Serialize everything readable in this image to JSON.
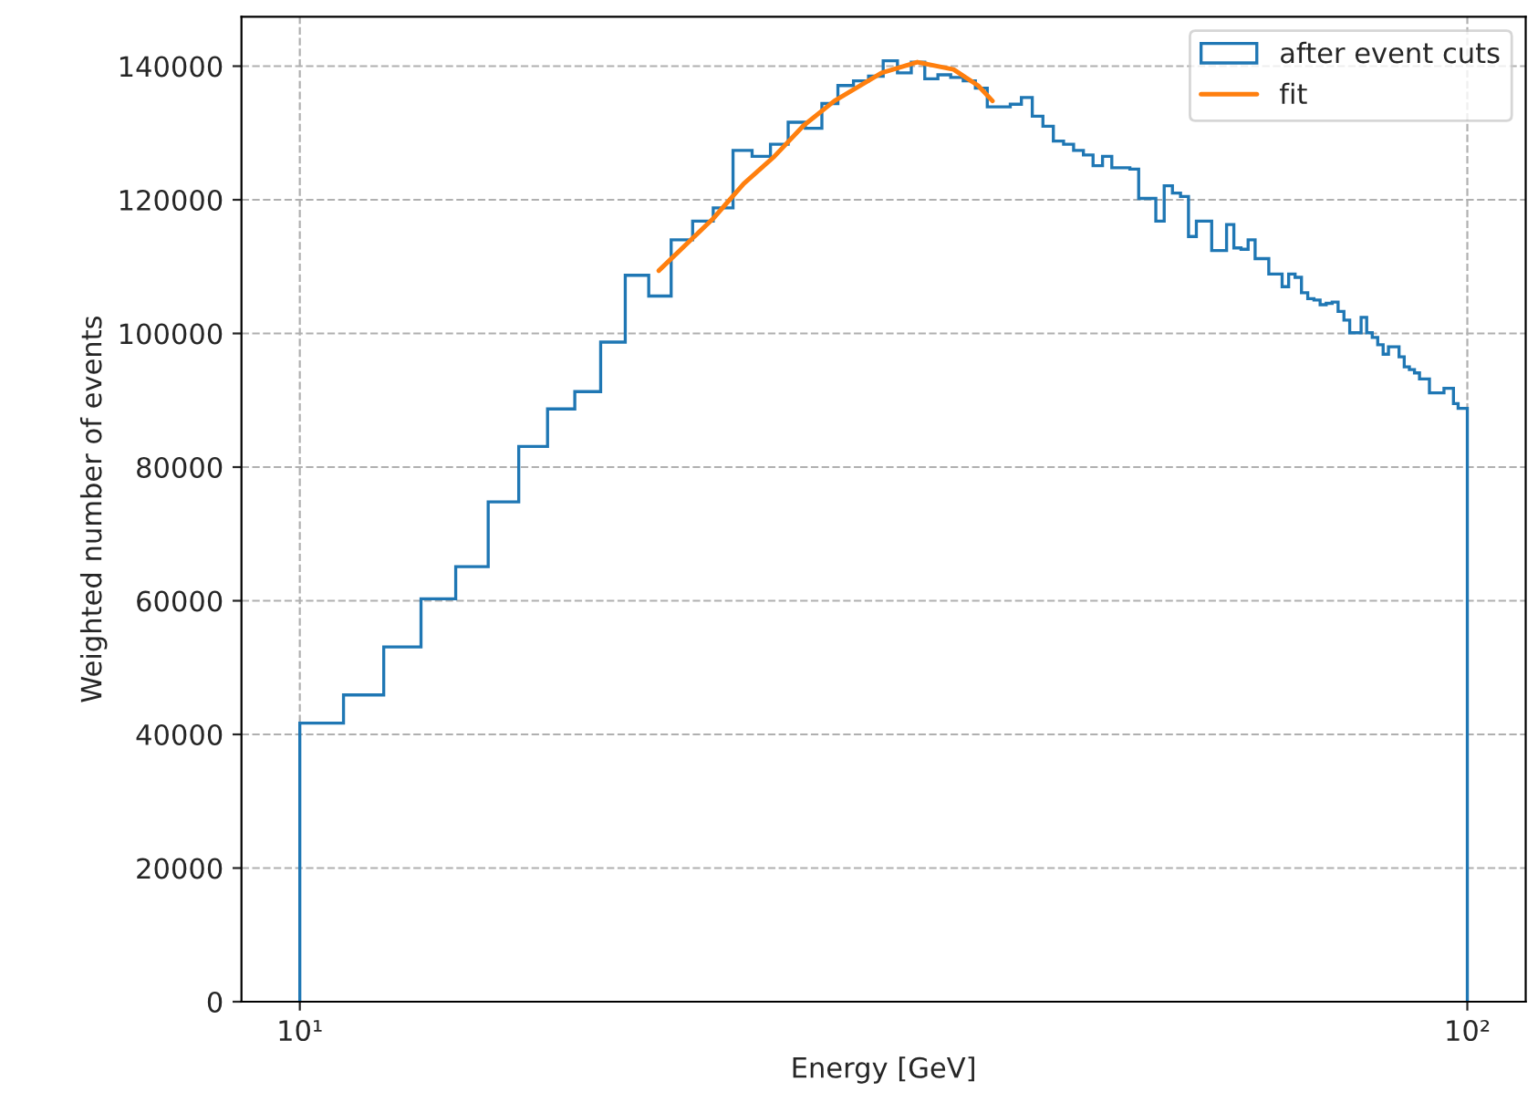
{
  "chart_data": {
    "type": "histogram",
    "xlabel": "Energy [GeV]",
    "ylabel": "Weighted number of events",
    "bins": [
      10,
      10.9,
      11.8,
      12.7,
      13.6,
      14.5,
      15.4,
      16.3,
      17.2,
      18.1,
      19,
      19.9,
      20.8,
      21.7,
      22.6,
      23.5,
      24.4,
      25.3,
      26.2,
      27.1,
      28,
      28.9,
      29.8,
      30.7,
      31.6,
      32.5,
      33.4,
      34.3,
      35.2,
      36.1,
      37,
      37.9,
      38.8,
      39.7,
      40.6,
      41.5,
      42.4,
      43.3,
      44.2,
      45.1,
      46,
      46.9,
      47.8,
      48.7,
      49.6,
      50.5,
      51.4,
      52.3,
      53.2,
      54.1,
      55,
      55.9,
      56.8,
      57.7,
      58.6,
      59.5,
      60.4,
      61.3,
      62.2,
      63.1,
      64,
      64.9,
      65.8,
      66.7,
      67.6,
      68.5,
      69.4,
      70.3,
      71.2,
      72.1,
      73,
      73.9,
      74.8,
      75.7,
      76.6,
      77.5,
      78.4,
      79.3,
      80.2,
      81.1,
      82,
      82.9,
      83.8,
      84.7,
      85.6,
      86.5,
      87.4,
      88.3,
      89.2,
      90.1,
      91,
      91.9,
      92.8,
      93.7,
      94.6,
      95.5,
      96.4,
      97.3,
      98.2,
      99.1,
      100
    ],
    "series": [
      {
        "name": "after event cuts",
        "color": "#1f77b4",
        "values": [
          41700,
          45900,
          53100,
          60300,
          65100,
          74800,
          83100,
          88700,
          91300,
          98700,
          108700,
          105600,
          114000,
          116800,
          118800,
          127400,
          126500,
          128300,
          131600,
          130700,
          134400,
          137100,
          137800,
          138500,
          140800,
          139000,
          140600,
          138100,
          138700,
          138300,
          137800,
          136700,
          133900,
          133900,
          134300,
          135300,
          132500,
          131000,
          128800,
          128300,
          127400,
          126700,
          125100,
          126500,
          124800,
          124800,
          124600,
          120200,
          120200,
          116800,
          122100,
          121000,
          120500,
          114500,
          116800,
          116800,
          112400,
          112400,
          116300,
          112800,
          112600,
          114000,
          111200,
          111200,
          108900,
          108900,
          107000,
          108900,
          108400,
          106100,
          105200,
          105000,
          104300,
          104500,
          104700,
          103300,
          102000,
          100100,
          100100,
          102400,
          100100,
          99400,
          98300,
          96900,
          98000,
          98000,
          96500,
          95000,
          94600,
          94100,
          93200,
          93200,
          91100,
          91100,
          91100,
          91800,
          91800,
          89500,
          88800,
          88800
        ]
      },
      {
        "name": "fit",
        "type": "line",
        "color": "#ff7f0e",
        "x": [
          20.3,
          22.6,
          24.0,
          25.5,
          27.0,
          28.7,
          31.5,
          33.8,
          36.3,
          38.1,
          39.2
        ],
        "values": [
          109400,
          117200,
          122400,
          126500,
          131100,
          134800,
          139000,
          140600,
          139500,
          137100,
          134800
        ]
      }
    ],
    "xlim": [
      8.913,
      112.2
    ],
    "xticks": [
      {
        "value": 10,
        "label": "10¹"
      },
      {
        "value": 100,
        "label": "10²"
      }
    ],
    "ylim": [
      0,
      147400
    ],
    "yticks": [
      0,
      20000,
      40000,
      60000,
      80000,
      100000,
      120000,
      140000
    ],
    "log": "x",
    "grid": true,
    "legend": "top right"
  }
}
